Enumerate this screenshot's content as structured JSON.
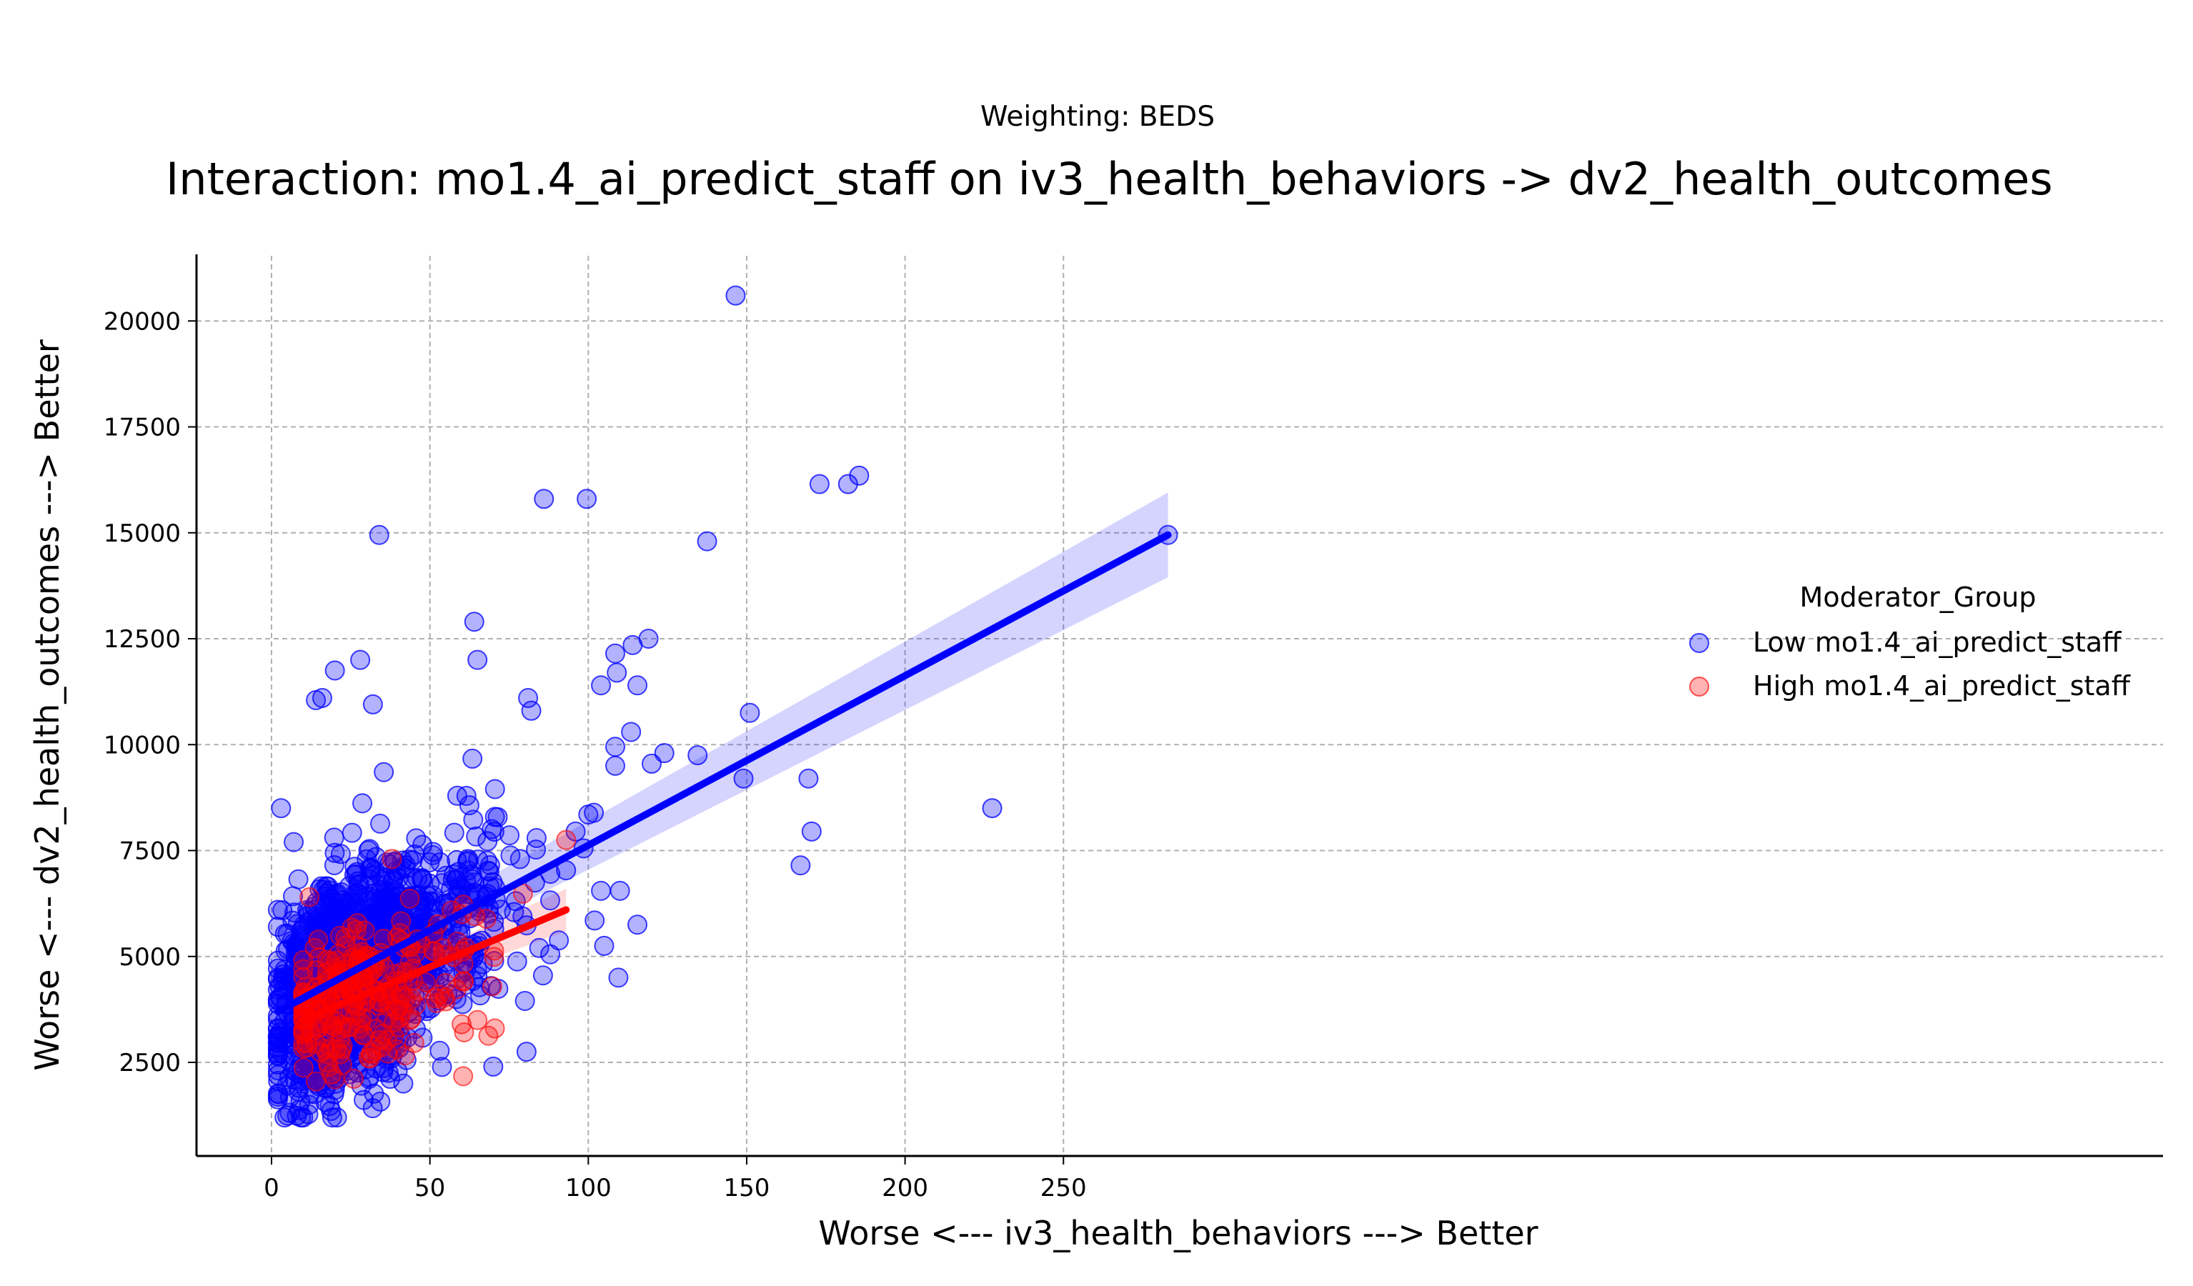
{
  "chart_data": {
    "type": "scatter",
    "suptitle": "Weighting: BEDS",
    "title": "Interaction: mo1.4_ai_predict_staff on iv3_health_behaviors -> dv2_health_outcomes",
    "xlabel": "Worse <--- iv3_health_behaviors ---> Better",
    "ylabel": "Worse <--- dv2_health_outcomes ---> Better",
    "xlim": [
      -12,
      298
    ],
    "ylim": [
      1000,
      21500
    ],
    "xticks": [
      0,
      50,
      100,
      150,
      200,
      250
    ],
    "yticks": [
      2500,
      5000,
      7500,
      10000,
      12500,
      15000,
      17500,
      20000
    ],
    "xtick_labels": [
      "0",
      "50",
      "100",
      "150",
      "200",
      "250"
    ],
    "ytick_labels": [
      "2500",
      "5000",
      "7500",
      "10000",
      "12500",
      "15000",
      "17500",
      "20000"
    ],
    "grid": true,
    "legend": {
      "title": "Moderator_Group",
      "placement": "right",
      "entries": [
        "Low mo1.4_ai_predict_staff",
        "High mo1.4_ai_predict_staff"
      ]
    },
    "series": [
      {
        "name": "Low mo1.4_ai_predict_staff",
        "color": "#0000ff",
        "cluster": {
          "n": 1500,
          "x_min": 2,
          "x_mode": 22,
          "x_max": 110,
          "x_center": 30,
          "y_at_x0": 3600,
          "slope": 36,
          "y_sd": 1200,
          "y_min": 1200
        },
        "points": [
          [
            146.5,
            20600
          ],
          [
            86,
            15800
          ],
          [
            99.5,
            15800
          ],
          [
            34,
            14950
          ],
          [
            173,
            16150
          ],
          [
            182,
            16150
          ],
          [
            185.5,
            16350
          ],
          [
            137.5,
            14800
          ],
          [
            283,
            14950
          ],
          [
            64,
            12900
          ],
          [
            65,
            12000
          ],
          [
            28,
            12000
          ],
          [
            20,
            11750
          ],
          [
            108.5,
            12150
          ],
          [
            114,
            12350
          ],
          [
            119,
            12500
          ],
          [
            109,
            11700
          ],
          [
            115.5,
            11400
          ],
          [
            104,
            11400
          ],
          [
            16,
            11100
          ],
          [
            14,
            11050
          ],
          [
            32,
            10950
          ],
          [
            81,
            11100
          ],
          [
            82,
            10800
          ],
          [
            151,
            10750
          ],
          [
            113.5,
            10300
          ],
          [
            108.5,
            9950
          ],
          [
            134.5,
            9750
          ],
          [
            120,
            9550
          ],
          [
            124,
            9800
          ],
          [
            108.5,
            9500
          ],
          [
            149,
            9200
          ],
          [
            169.5,
            9200
          ],
          [
            227.5,
            8500
          ],
          [
            170.5,
            7950
          ],
          [
            167,
            7150
          ],
          [
            115.5,
            5750
          ],
          [
            109.5,
            4500
          ],
          [
            105,
            5250
          ],
          [
            102,
            5850
          ],
          [
            104,
            6550
          ],
          [
            110,
            6550
          ],
          [
            98.5,
            7550
          ],
          [
            96,
            7950
          ],
          [
            100,
            8350
          ],
          [
            88,
            6950
          ],
          [
            88,
            5050
          ],
          [
            84.5,
            5200
          ],
          [
            80,
            3950
          ],
          [
            80.5,
            2750
          ],
          [
            70,
            2400
          ],
          [
            3,
            8500
          ],
          [
            7,
            7700
          ],
          [
            2,
            6100
          ],
          [
            2,
            5700
          ],
          [
            2,
            4900
          ],
          [
            2.5,
            4300
          ],
          [
            2,
            3600
          ],
          [
            2,
            2850
          ],
          [
            2,
            2450
          ],
          [
            2,
            2200
          ]
        ]
      },
      {
        "name": "High mo1.4_ai_predict_staff",
        "color": "#ff0000",
        "cluster": {
          "n": 260,
          "x_min": 10,
          "x_mode": 22,
          "x_max": 90,
          "x_center": 28,
          "y_at_x0": 3300,
          "slope": 31,
          "y_sd": 850,
          "y_min": 1800
        },
        "points": [
          [
            93,
            7750
          ],
          [
            38,
            7300
          ],
          [
            70.5,
            3300
          ],
          [
            60,
            3400
          ],
          [
            65,
            3500
          ],
          [
            12,
            6400
          ],
          [
            14,
            2050
          ],
          [
            20,
            2100
          ]
        ]
      }
    ],
    "fits": [
      {
        "series": "Low mo1.4_ai_predict_staff",
        "x": [
          2,
          283
        ],
        "y": [
          3700,
          14950
        ],
        "ci_lower": [
          3350,
          13950
        ],
        "ci_upper": [
          4050,
          15950
        ]
      },
      {
        "series": "High mo1.4_ai_predict_staff",
        "x": [
          10,
          93
        ],
        "y": [
          3500,
          6100
        ],
        "ci_lower": [
          3300,
          5600
        ],
        "ci_upper": [
          3700,
          6600
        ]
      }
    ]
  }
}
